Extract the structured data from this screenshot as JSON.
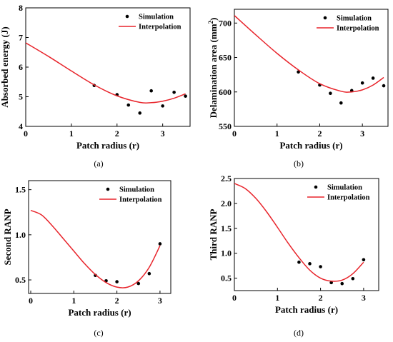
{
  "chart_data": [
    {
      "type": "scatter",
      "caption": "(a)",
      "xlabel": "Patch radius (r)",
      "ylabel": "Absorbed energy (J)",
      "ylabel_sup": "",
      "ylabel_tail": "",
      "xlim": [
        0,
        3.6
      ],
      "ylim": [
        4,
        8
      ],
      "xticks": [
        0,
        1,
        2,
        3
      ],
      "yticks": [
        4,
        5,
        6,
        7,
        8
      ],
      "legend_position": "top-right",
      "series": [
        {
          "name": "Simulation",
          "kind": "markers",
          "x": [
            1.5,
            2.0,
            2.25,
            2.5,
            2.75,
            3.0,
            3.25,
            3.5
          ],
          "y": [
            5.38,
            5.07,
            4.72,
            4.45,
            5.2,
            4.69,
            5.15,
            5.02
          ]
        },
        {
          "name": "Interpolation",
          "kind": "line",
          "x": [
            0,
            0.5,
            1.0,
            1.5,
            2.0,
            2.5,
            2.75,
            3.0,
            3.25,
            3.5
          ],
          "y": [
            6.82,
            6.36,
            5.87,
            5.4,
            5.03,
            4.81,
            4.8,
            4.85,
            4.95,
            5.1
          ]
        }
      ]
    },
    {
      "type": "scatter",
      "caption": "(b)",
      "xlabel": "Patch radius (r)",
      "ylabel": "Delamination area (mm",
      "ylabel_sup": "2",
      "ylabel_tail": ")",
      "xlim": [
        0,
        3.6
      ],
      "ylim": [
        550,
        720
      ],
      "xticks": [
        0,
        1,
        2,
        3
      ],
      "yticks": [
        550,
        600,
        650,
        700
      ],
      "legend_position": "top-right",
      "series": [
        {
          "name": "Simulation",
          "kind": "markers",
          "x": [
            1.5,
            2.0,
            2.25,
            2.5,
            2.75,
            3.0,
            3.25,
            3.5
          ],
          "y": [
            629,
            610,
            598,
            584,
            602,
            613,
            620,
            609
          ]
        },
        {
          "name": "Interpolation",
          "kind": "line",
          "x": [
            0,
            0.5,
            1.0,
            1.5,
            2.0,
            2.5,
            2.75,
            3.0,
            3.25,
            3.5
          ],
          "y": [
            711,
            683,
            656,
            632,
            612,
            601,
            600,
            603,
            610,
            621
          ]
        }
      ]
    },
    {
      "type": "scatter",
      "caption": "(c)",
      "xlabel": "Patch radius (r)",
      "ylabel": "Second RANP",
      "ylabel_sup": "",
      "ylabel_tail": "",
      "xlim": [
        -0.05,
        3.25
      ],
      "ylim": [
        0.35,
        1.6
      ],
      "xticks": [
        0,
        1,
        2,
        3
      ],
      "yticks": [
        0.5,
        1.0,
        1.5
      ],
      "tick_decimals": 1,
      "legend_position": "top-right",
      "series": [
        {
          "name": "Simulation",
          "kind": "markers",
          "x": [
            1.5,
            1.75,
            2.0,
            2.5,
            2.75,
            3.0
          ],
          "y": [
            0.55,
            0.49,
            0.48,
            0.46,
            0.57,
            0.9
          ]
        },
        {
          "name": "Interpolation",
          "kind": "line",
          "x": [
            0,
            0.25,
            0.5,
            0.75,
            1.0,
            1.25,
            1.5,
            1.75,
            2.0,
            2.25,
            2.5,
            2.75,
            3.0
          ],
          "y": [
            1.27,
            1.22,
            1.1,
            0.96,
            0.82,
            0.68,
            0.56,
            0.47,
            0.42,
            0.42,
            0.49,
            0.64,
            0.88
          ]
        }
      ]
    },
    {
      "type": "scatter",
      "caption": "(d)",
      "xlabel": "Patch radius (r)",
      "ylabel": "Third RANP",
      "ylabel_sup": "",
      "ylabel_tail": "",
      "xlim": [
        0,
        3.35
      ],
      "ylim": [
        0.25,
        2.5
      ],
      "xticks": [
        0,
        1,
        2,
        3
      ],
      "yticks": [
        0.5,
        1.0,
        1.5,
        2.0,
        2.5
      ],
      "tick_decimals": 1,
      "legend_position": "top-right",
      "series": [
        {
          "name": "Simulation",
          "kind": "markers",
          "x": [
            1.5,
            1.75,
            2.0,
            2.25,
            2.5,
            2.75,
            3.0
          ],
          "y": [
            0.82,
            0.79,
            0.73,
            0.41,
            0.39,
            0.49,
            0.87
          ]
        },
        {
          "name": "Interpolation",
          "kind": "line",
          "x": [
            0,
            0.25,
            0.5,
            0.75,
            1.0,
            1.25,
            1.5,
            1.75,
            2.0,
            2.25,
            2.5,
            2.75,
            3.0
          ],
          "y": [
            2.4,
            2.3,
            2.1,
            1.83,
            1.52,
            1.2,
            0.91,
            0.66,
            0.5,
            0.44,
            0.46,
            0.59,
            0.82
          ]
        }
      ]
    }
  ]
}
